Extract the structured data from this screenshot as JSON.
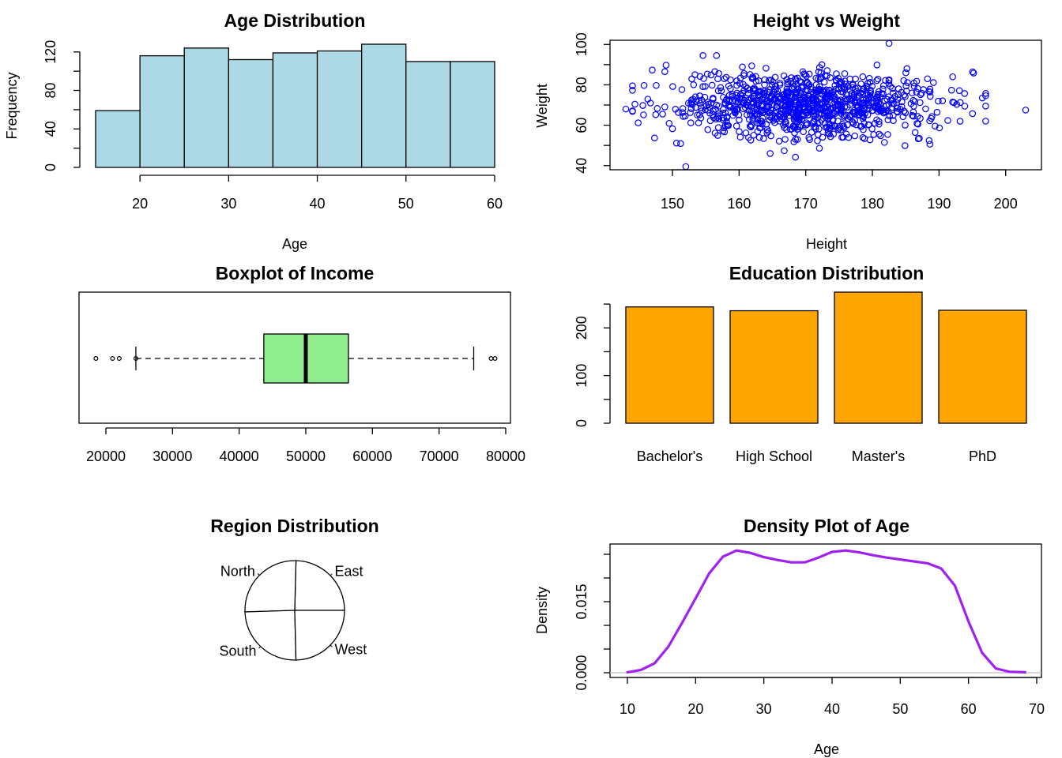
{
  "colors": {
    "hist_fill": "#ADD8E6",
    "scatter_point": "#0000FF",
    "box_fill": "#90EE90",
    "bar_fill": "#FFA500",
    "density_line": "#A020F0",
    "baseline_gray": "#BEBEBE"
  },
  "chart_data": [
    {
      "type": "bar",
      "subtype": "histogram",
      "title": "Age Distribution",
      "xlabel": "Age",
      "ylabel": "Frequency",
      "bin_edges": [
        15,
        20,
        25,
        30,
        35,
        40,
        45,
        50,
        55,
        60
      ],
      "values": [
        59,
        116,
        124,
        112,
        119,
        121,
        128,
        110,
        110
      ],
      "xticks": [
        20,
        30,
        40,
        50,
        60
      ],
      "yticks": [
        0,
        40,
        80,
        120
      ],
      "xlim": [
        15,
        60
      ],
      "ylim": [
        0,
        128
      ]
    },
    {
      "type": "scatter",
      "title": "Height vs Weight",
      "xlabel": "Height",
      "ylabel": "Weight",
      "xticks": [
        150,
        160,
        170,
        180,
        190,
        200
      ],
      "yticks": [
        40,
        60,
        80,
        100
      ],
      "xlim": [
        143,
        203
      ],
      "ylim": [
        39.5,
        100.5
      ],
      "n_points": 1000,
      "x_center": 170,
      "x_spread": 10,
      "y_center": 70,
      "y_spread": 8,
      "notable_points": [
        [
          152,
          39.5
        ],
        [
          182.5,
          100.5
        ],
        [
          203,
          67.5
        ],
        [
          196.5,
          73.5
        ],
        [
          143,
          68
        ]
      ]
    },
    {
      "type": "boxplot",
      "orientation": "horizontal",
      "title": "Boxplot of Income",
      "xticks": [
        20000,
        30000,
        40000,
        50000,
        60000,
        70000,
        80000
      ],
      "xlim": [
        18500,
        78500
      ],
      "whisker_low": 24500,
      "q1": 43700,
      "median": 50000,
      "q3": 56400,
      "whisker_high": 75200,
      "outliers": [
        18500,
        21000,
        22000,
        24500,
        77800,
        78400
      ]
    },
    {
      "type": "bar",
      "title": "Education Distribution",
      "categories": [
        "Bachelor's",
        "High School",
        "Master's",
        "PhD"
      ],
      "values": [
        244,
        236,
        275,
        237
      ],
      "yticks": [
        0,
        100,
        200
      ],
      "ylim": [
        0,
        275
      ]
    },
    {
      "type": "pie",
      "title": "Region Distribution",
      "labels": [
        "East",
        "North",
        "South",
        "West"
      ],
      "values": [
        246,
        259,
        249,
        246
      ],
      "direction": "counterclockwise",
      "start": "right"
    },
    {
      "type": "line",
      "subtype": "density",
      "title": "Density Plot of Age",
      "xlabel": "Age",
      "ylabel": "Density",
      "xticks": [
        10,
        20,
        30,
        40,
        50,
        60,
        70
      ],
      "yticks": [
        "0.000",
        "0.015"
      ],
      "xlim": [
        10,
        68.3
      ],
      "ylim": [
        0,
        0.0258
      ],
      "x": [
        10,
        12,
        14,
        16,
        18,
        20,
        22,
        24,
        26,
        28,
        30,
        32,
        34,
        36,
        38,
        40,
        42,
        44,
        46,
        48,
        50,
        52,
        54,
        56,
        58,
        60,
        62,
        64,
        66,
        68.3
      ],
      "y": [
        0.0001,
        0.0006,
        0.002,
        0.0055,
        0.0105,
        0.0157,
        0.021,
        0.0245,
        0.0258,
        0.0253,
        0.0244,
        0.0238,
        0.0233,
        0.0233,
        0.0243,
        0.0255,
        0.0258,
        0.0254,
        0.0248,
        0.0243,
        0.0239,
        0.0235,
        0.0231,
        0.022,
        0.0184,
        0.0108,
        0.0042,
        0.0009,
        0.0002,
        0.0001
      ]
    }
  ]
}
